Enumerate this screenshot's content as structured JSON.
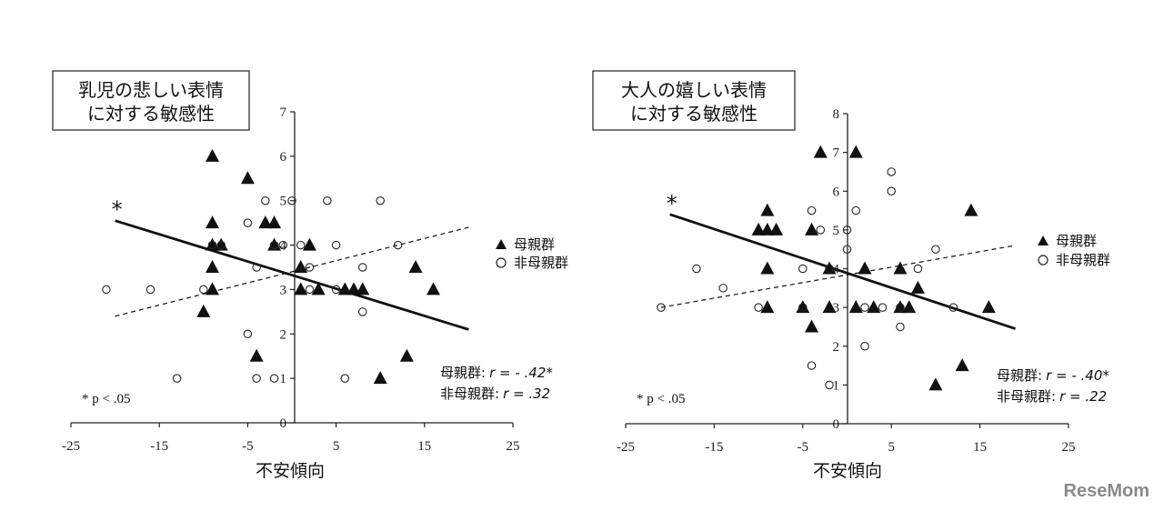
{
  "chart_data": [
    {
      "type": "scatter",
      "title_lines": [
        "乳児の悲しい表情",
        "に対する敏感性"
      ],
      "xlabel": "不安傾向",
      "xlim": [
        -25,
        25
      ],
      "ylim": [
        0,
        7
      ],
      "xticks": [
        -25,
        -15,
        -5,
        5,
        15,
        25
      ],
      "yticks": [
        0,
        1,
        2,
        3,
        4,
        5,
        6,
        7
      ],
      "legend_position": "right",
      "series": [
        {
          "name": "母親群",
          "marker": "filled-triangle",
          "points": [
            [
              -9,
              6
            ],
            [
              -9,
              4.5
            ],
            [
              -9,
              4
            ],
            [
              -9,
              3.5
            ],
            [
              -9,
              3
            ],
            [
              -10,
              2.5
            ],
            [
              -8,
              4
            ],
            [
              -5,
              5.5
            ],
            [
              -3,
              4.5
            ],
            [
              -2,
              4.5
            ],
            [
              -2,
              4
            ],
            [
              -4,
              1.5
            ],
            [
              1,
              3.5
            ],
            [
              1,
              3
            ],
            [
              2,
              4
            ],
            [
              3,
              3
            ],
            [
              6,
              3
            ],
            [
              7,
              3
            ],
            [
              8,
              3
            ],
            [
              10,
              1
            ],
            [
              13,
              1.5
            ],
            [
              14,
              3.5
            ],
            [
              16,
              3
            ]
          ]
        },
        {
          "name": "非母親群",
          "marker": "open-circle",
          "points": [
            [
              -21,
              3
            ],
            [
              -16,
              3
            ],
            [
              -13,
              1
            ],
            [
              -10,
              3
            ],
            [
              -9,
              4
            ],
            [
              -8,
              4
            ],
            [
              -5,
              4.5
            ],
            [
              -5,
              2
            ],
            [
              -4,
              3.5
            ],
            [
              -3,
              5
            ],
            [
              -2,
              4
            ],
            [
              -2,
              1
            ],
            [
              -4,
              1
            ],
            [
              -1,
              4
            ],
            [
              0,
              5
            ],
            [
              1,
              4
            ],
            [
              2,
              3.5
            ],
            [
              2,
              3
            ],
            [
              4,
              5
            ],
            [
              5,
              4
            ],
            [
              5,
              3
            ],
            [
              6,
              1
            ],
            [
              8,
              2.5
            ],
            [
              8,
              3.5
            ],
            [
              10,
              5
            ],
            [
              12,
              4
            ]
          ]
        }
      ],
      "fit_lines": [
        {
          "series": "母親群",
          "style": "solid",
          "x": [
            -20,
            20
          ],
          "y": [
            4.55,
            2.1
          ],
          "marker": "*"
        },
        {
          "series": "非母親群",
          "style": "dashed",
          "x": [
            -20,
            20
          ],
          "y": [
            2.4,
            4.4
          ]
        }
      ],
      "stats": [
        {
          "group": "母親群:",
          "r_text": "r = - .42*"
        },
        {
          "group": "非母親群:",
          "r_text": "r = .32"
        }
      ],
      "note": "* p < .05"
    },
    {
      "type": "scatter",
      "title_lines": [
        "大人の嬉しい表情",
        "に対する敏感性"
      ],
      "xlabel": "不安傾向",
      "xlim": [
        -25,
        25
      ],
      "ylim": [
        0,
        8
      ],
      "xticks": [
        -25,
        -15,
        -5,
        5,
        15,
        25
      ],
      "yticks": [
        0,
        1,
        2,
        3,
        4,
        5,
        6,
        7,
        8
      ],
      "legend_position": "right",
      "series": [
        {
          "name": "母親群",
          "marker": "filled-triangle",
          "points": [
            [
              -10,
              5
            ],
            [
              -9,
              5
            ],
            [
              -8,
              5
            ],
            [
              -9,
              5.5
            ],
            [
              -9,
              4
            ],
            [
              -9,
              3
            ],
            [
              -5,
              3
            ],
            [
              -4,
              5
            ],
            [
              -4,
              2.5
            ],
            [
              -3,
              7
            ],
            [
              -2,
              4
            ],
            [
              -2,
              3
            ],
            [
              1,
              7
            ],
            [
              1,
              3
            ],
            [
              2,
              4
            ],
            [
              3,
              3
            ],
            [
              6,
              4
            ],
            [
              6,
              3
            ],
            [
              7,
              3
            ],
            [
              8,
              3.5
            ],
            [
              10,
              1
            ],
            [
              13,
              1.5
            ],
            [
              14,
              5.5
            ],
            [
              16,
              3
            ]
          ]
        },
        {
          "name": "非母親群",
          "marker": "open-circle",
          "points": [
            [
              -21,
              3
            ],
            [
              -17,
              4
            ],
            [
              -14,
              3.5
            ],
            [
              -10,
              3
            ],
            [
              -5,
              4
            ],
            [
              -5,
              3
            ],
            [
              -4,
              5.5
            ],
            [
              -4,
              1.5
            ],
            [
              -3,
              5
            ],
            [
              -2,
              4
            ],
            [
              -2,
              1
            ],
            [
              0,
              5
            ],
            [
              0,
              4.5
            ],
            [
              1,
              5.5
            ],
            [
              2,
              2
            ],
            [
              2,
              3
            ],
            [
              4,
              3
            ],
            [
              5,
              6.5
            ],
            [
              5,
              6
            ],
            [
              6,
              2.5
            ],
            [
              6,
              3
            ],
            [
              8,
              4
            ],
            [
              10,
              4.5
            ],
            [
              12,
              3
            ]
          ]
        }
      ],
      "fit_lines": [
        {
          "series": "母親群",
          "style": "solid",
          "x": [
            -20,
            19
          ],
          "y": [
            5.4,
            2.45
          ],
          "marker": "*"
        },
        {
          "series": "非母親群",
          "style": "dashed",
          "x": [
            -21,
            19
          ],
          "y": [
            3.0,
            4.6
          ]
        }
      ],
      "stats": [
        {
          "group": "母親群:",
          "r_text": "r = - .40*"
        },
        {
          "group": "非母親群:",
          "r_text": "r = .22"
        }
      ],
      "note": "* p < .05"
    }
  ],
  "watermark": "ReseMom",
  "colors": {
    "marks": "#111111",
    "watermark": "#8a8a8a"
  }
}
